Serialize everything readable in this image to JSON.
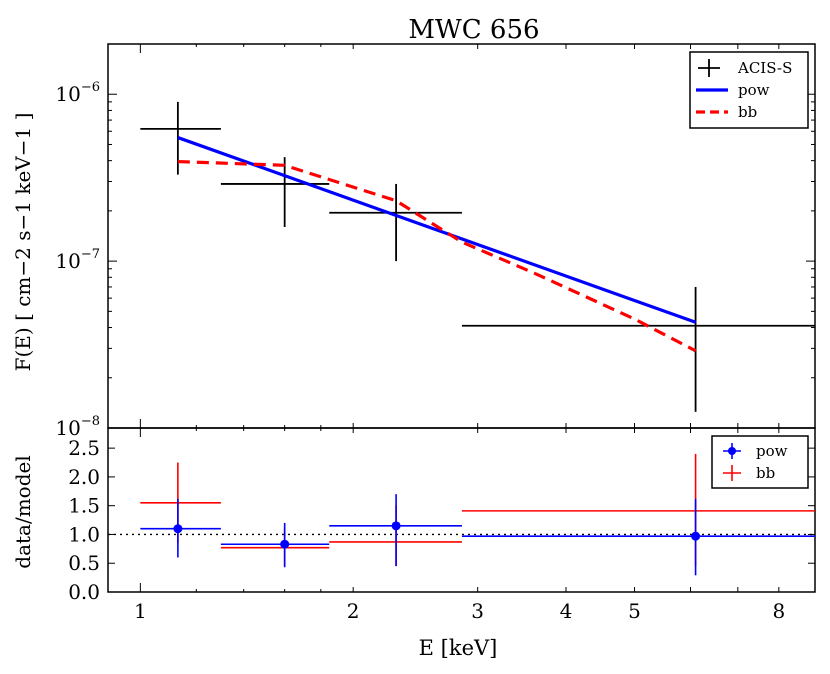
{
  "chart_data": [
    {
      "type": "line",
      "title": "MWC 656",
      "xlabel": "",
      "ylabel": "F(E) [ cm−2 s−1 keV−1 ]",
      "xscale": "log",
      "yscale": "log",
      "xlim": [
        0.9,
        9.0
      ],
      "ylim": [
        1e-08,
        2e-06
      ],
      "y_ticks": [
        {
          "value": 1e-06,
          "label": "10",
          "exp": "−6"
        },
        {
          "value": 1e-07,
          "label": "10",
          "exp": "−7"
        },
        {
          "value": 1e-08,
          "label": "10",
          "exp": "−8"
        }
      ],
      "legend": {
        "position": "top-right",
        "entries": [
          {
            "label": "ACIS-S",
            "color": "#000000",
            "style": "errorbar"
          },
          {
            "label": "pow",
            "color": "#0000ff",
            "style": "solid"
          },
          {
            "label": "bb",
            "color": "#ff0000",
            "style": "dashed"
          }
        ]
      },
      "series": [
        {
          "name": "ACIS-S",
          "color": "#000000",
          "points": [
            {
              "x": 1.13,
              "xlo": 1.0,
              "xhi": 1.3,
              "y": 6.2e-07,
              "ylo": 3.3e-07,
              "yhi": 9e-07
            },
            {
              "x": 1.6,
              "xlo": 1.3,
              "xhi": 1.85,
              "y": 2.9e-07,
              "ylo": 1.6e-07,
              "yhi": 4.2e-07
            },
            {
              "x": 2.3,
              "xlo": 1.85,
              "xhi": 2.85,
              "y": 1.95e-07,
              "ylo": 1e-07,
              "yhi": 2.9e-07
            },
            {
              "x": 6.1,
              "xlo": 2.85,
              "xhi": 9.0,
              "y": 4.1e-08,
              "ylo": 1.25e-08,
              "yhi": 7e-08
            }
          ]
        },
        {
          "name": "pow",
          "color": "#0000ff",
          "style": "solid",
          "x": [
            1.13,
            6.1
          ],
          "y": [
            5.5e-07,
            4.3e-08
          ]
        },
        {
          "name": "bb",
          "color": "#ff0000",
          "style": "dashed",
          "x": [
            1.13,
            1.6,
            2.3,
            2.85,
            3.6,
            5.0,
            6.1
          ],
          "y": [
            3.95e-07,
            3.75e-07,
            2.3e-07,
            1.3e-07,
            8.5e-08,
            4.5e-08,
            2.9e-08
          ]
        }
      ]
    },
    {
      "type": "scatter",
      "xlabel": "E [keV]",
      "ylabel": "data/model",
      "xscale": "log",
      "xlim": [
        0.9,
        9.0
      ],
      "ylim": [
        0.0,
        2.85
      ],
      "x_ticks": [
        {
          "value": 1,
          "label": "1"
        },
        {
          "value": 2,
          "label": "2"
        },
        {
          "value": 3,
          "label": "3"
        },
        {
          "value": 4,
          "label": "4"
        },
        {
          "value": 5,
          "label": "5"
        },
        {
          "value": 8,
          "label": "8"
        }
      ],
      "y_ticks": [
        {
          "value": 0.0,
          "label": "0.0"
        },
        {
          "value": 0.5,
          "label": "0.5"
        },
        {
          "value": 1.0,
          "label": "1.0"
        },
        {
          "value": 1.5,
          "label": "1.5"
        },
        {
          "value": 2.0,
          "label": "2.0"
        },
        {
          "value": 2.5,
          "label": "2.5"
        }
      ],
      "reference_line": {
        "y": 1.0,
        "style": "dotted",
        "color": "#000000"
      },
      "legend": {
        "position": "top-right",
        "entries": [
          {
            "label": "pow",
            "color": "#0000ff",
            "style": "errorbar-marker"
          },
          {
            "label": "bb",
            "color": "#ff0000",
            "style": "errorbar"
          }
        ]
      },
      "series": [
        {
          "name": "pow",
          "color": "#0000ff",
          "marker": true,
          "points": [
            {
              "x": 1.13,
              "xlo": 1.0,
              "xhi": 1.3,
              "y": 1.1,
              "ylo": 0.6,
              "yhi": 1.62
            },
            {
              "x": 1.6,
              "xlo": 1.3,
              "xhi": 1.85,
              "y": 0.83,
              "ylo": 0.43,
              "yhi": 1.2
            },
            {
              "x": 2.3,
              "xlo": 1.85,
              "xhi": 2.85,
              "y": 1.15,
              "ylo": 0.45,
              "yhi": 1.7
            },
            {
              "x": 6.1,
              "xlo": 2.85,
              "xhi": 9.0,
              "y": 0.97,
              "ylo": 0.29,
              "yhi": 1.62
            }
          ]
        },
        {
          "name": "bb",
          "color": "#ff0000",
          "marker": false,
          "points": [
            {
              "x": 1.13,
              "xlo": 1.0,
              "xhi": 1.3,
              "y": 1.55,
              "ylo": 0.85,
              "yhi": 2.25
            },
            {
              "x": 1.6,
              "xlo": 1.3,
              "xhi": 1.85,
              "y": 0.77,
              "ylo": 0.45,
              "yhi": 1.1
            },
            {
              "x": 2.3,
              "xlo": 1.85,
              "xhi": 2.85,
              "y": 0.87,
              "ylo": 0.45,
              "yhi": 1.5
            },
            {
              "x": 6.1,
              "xlo": 2.85,
              "xhi": 9.0,
              "y": 1.41,
              "ylo": 0.45,
              "yhi": 2.4
            }
          ]
        }
      ]
    }
  ]
}
